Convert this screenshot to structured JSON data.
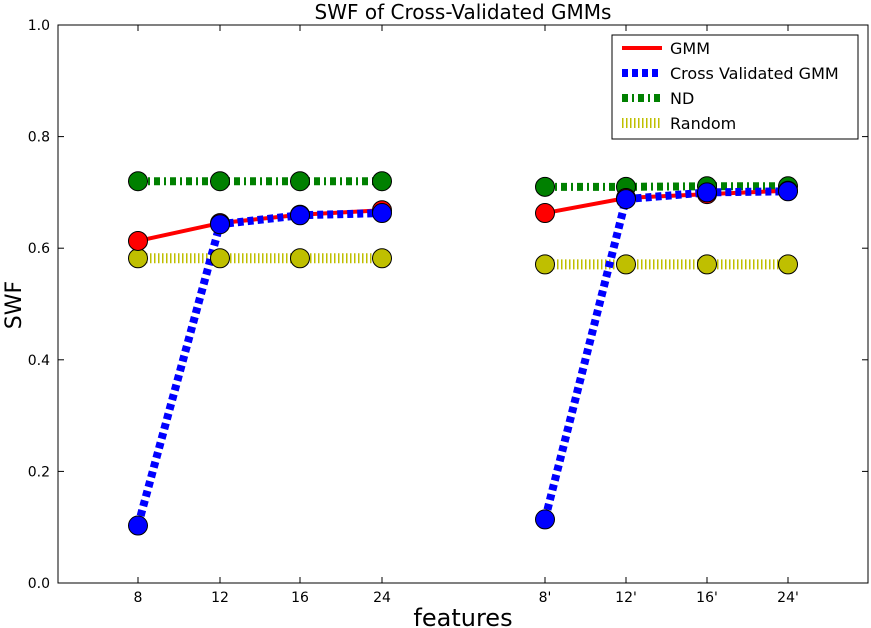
{
  "chart_data": {
    "type": "line",
    "title": "SWF of Cross-Validated GMMs",
    "xlabel": "features",
    "ylabel": "SWF",
    "ylim": [
      0.0,
      1.0
    ],
    "yticks": [
      "0.0",
      "0.2",
      "0.4",
      "0.6",
      "0.8",
      "1.0"
    ],
    "categories": [
      "8",
      "12",
      "16",
      "24",
      "8'",
      "12'",
      "16'",
      "24'"
    ],
    "groups": [
      {
        "indices": [
          0,
          1,
          2,
          3
        ]
      },
      {
        "indices": [
          4,
          5,
          6,
          7
        ]
      }
    ],
    "legend_position": "top-right",
    "grid": false,
    "series": [
      {
        "name": "GMM",
        "color": "#ff0000",
        "style": "solid",
        "values": [
          0.613,
          0.645,
          0.66,
          0.668,
          0.663,
          0.69,
          0.697,
          0.703
        ]
      },
      {
        "name": "Cross Validated GMM",
        "color": "#0000ff",
        "style": "dashed",
        "values": [
          0.103,
          0.643,
          0.659,
          0.663,
          0.114,
          0.688,
          0.7,
          0.702
        ]
      },
      {
        "name": "ND",
        "color": "#008000",
        "style": "dashdot",
        "values": [
          0.72,
          0.72,
          0.72,
          0.72,
          0.71,
          0.71,
          0.711,
          0.711
        ]
      },
      {
        "name": "Random",
        "color": "#bfbf00",
        "style": "dotted",
        "values": [
          0.582,
          0.582,
          0.582,
          0.582,
          0.571,
          0.571,
          0.571,
          0.571
        ]
      }
    ]
  }
}
